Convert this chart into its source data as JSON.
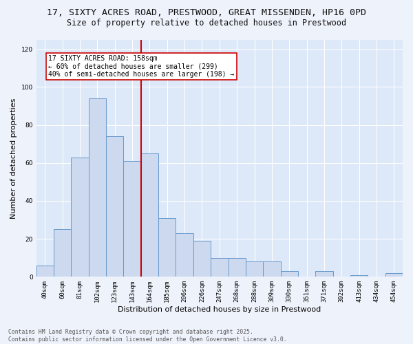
{
  "title1": "17, SIXTY ACRES ROAD, PRESTWOOD, GREAT MISSENDEN, HP16 0PD",
  "title2": "Size of property relative to detached houses in Prestwood",
  "xlabel": "Distribution of detached houses by size in Prestwood",
  "ylabel": "Number of detached properties",
  "bar_labels": [
    "40sqm",
    "60sqm",
    "81sqm",
    "102sqm",
    "123sqm",
    "143sqm",
    "164sqm",
    "185sqm",
    "206sqm",
    "226sqm",
    "247sqm",
    "268sqm",
    "288sqm",
    "309sqm",
    "330sqm",
    "351sqm",
    "371sqm",
    "392sqm",
    "413sqm",
    "434sqm",
    "454sqm"
  ],
  "bar_values": [
    6,
    25,
    63,
    94,
    74,
    61,
    65,
    31,
    23,
    19,
    10,
    10,
    8,
    8,
    3,
    0,
    3,
    0,
    1,
    0,
    2
  ],
  "bar_color": "#ccd9ee",
  "bar_edgecolor": "#6699cc",
  "vline_x": 5.5,
  "vline_color": "#cc0000",
  "annotation_line1": "17 SIXTY ACRES ROAD: 158sqm",
  "annotation_line2": "← 60% of detached houses are smaller (299)",
  "annotation_line3": "40% of semi-detached houses are larger (198) →",
  "annotation_box_color": "#ffffff",
  "annotation_box_edgecolor": "#cc0000",
  "ylim": [
    0,
    125
  ],
  "yticks": [
    0,
    20,
    40,
    60,
    80,
    100,
    120
  ],
  "background_color": "#dde8f8",
  "fig_background_color": "#eef2fa",
  "footer1": "Contains HM Land Registry data © Crown copyright and database right 2025.",
  "footer2": "Contains public sector information licensed under the Open Government Licence v3.0.",
  "title_fontsize": 9.5,
  "subtitle_fontsize": 8.5,
  "axis_fontsize": 8,
  "tick_fontsize": 6.5,
  "footer_fontsize": 5.8,
  "annotation_fontsize": 7.0
}
